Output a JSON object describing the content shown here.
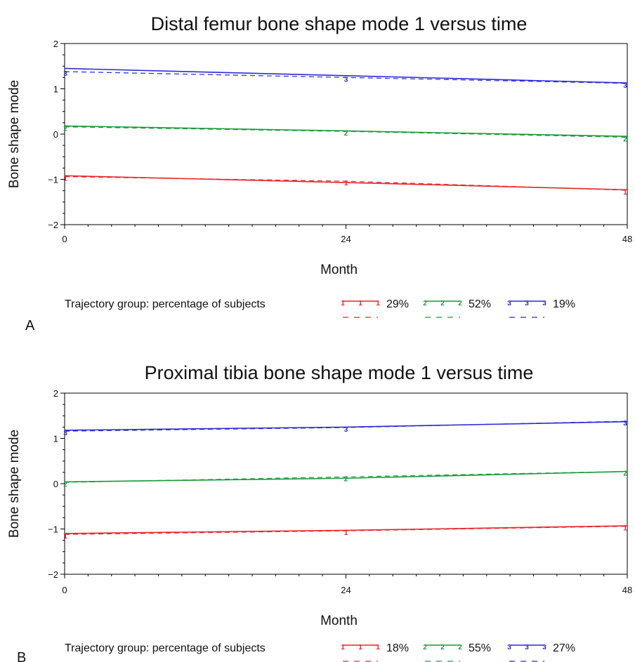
{
  "chart_data": [
    {
      "type": "line",
      "panel_label": "A",
      "title": "Distal femur bone shape mode 1 versus time",
      "xlabel": "Month",
      "ylabel": "Bone shape mode",
      "xlim": [
        0,
        48
      ],
      "ylim": [
        -2,
        2
      ],
      "xticks": [
        "0",
        "24",
        "48"
      ],
      "yticks": [
        {
          "value": 2,
          "label": "2"
        },
        {
          "value": 1,
          "label": "1"
        },
        {
          "value": 0,
          "label": "0"
        },
        {
          "value": -1,
          "label": "−1"
        },
        {
          "value": -2,
          "label": "−2"
        }
      ],
      "x": [
        0,
        24,
        48
      ],
      "legend_title": "Trajectory group: percentage of subjects",
      "series": [
        {
          "marker": "1",
          "label": "29%",
          "color": "#e8262a",
          "predicted": [
            -0.92,
            -1.07,
            -1.23
          ],
          "observed": [
            -0.94,
            -1.04,
            -1.24
          ]
        },
        {
          "marker": "2",
          "label": "52%",
          "color": "#1a9a3a",
          "predicted": [
            0.18,
            0.07,
            -0.05
          ],
          "observed": [
            0.16,
            0.06,
            -0.07
          ]
        },
        {
          "marker": "3",
          "label": "19%",
          "color": "#2b2bd9",
          "predicted": [
            1.45,
            1.29,
            1.13
          ],
          "observed": [
            1.38,
            1.25,
            1.12
          ]
        }
      ]
    },
    {
      "type": "line",
      "panel_label": "B",
      "title": "Proximal tibia bone shape mode 1 versus time",
      "xlabel": "Month",
      "ylabel": "Bone shape mode",
      "xlim": [
        0,
        48
      ],
      "ylim": [
        -2,
        2
      ],
      "xticks": [
        "0",
        "24",
        "48"
      ],
      "yticks": [
        {
          "value": 2,
          "label": "2"
        },
        {
          "value": 1,
          "label": "1"
        },
        {
          "value": 0,
          "label": "0"
        },
        {
          "value": -1,
          "label": "−1"
        },
        {
          "value": -2,
          "label": "−2"
        }
      ],
      "x": [
        0,
        24,
        48
      ],
      "legend_title": "Trajectory group: percentage of subjects",
      "series": [
        {
          "marker": "1",
          "label": "18%",
          "color": "#e8262a",
          "predicted": [
            -1.1,
            -1.03,
            -0.93
          ],
          "observed": [
            -1.12,
            -1.04,
            -0.94
          ]
        },
        {
          "marker": "2",
          "label": "55%",
          "color": "#1a9a3a",
          "predicted": [
            0.04,
            0.12,
            0.27
          ],
          "observed": [
            0.03,
            0.15,
            0.27
          ]
        },
        {
          "marker": "3",
          "label": "27%",
          "color": "#2b2bd9",
          "predicted": [
            1.18,
            1.25,
            1.37
          ],
          "observed": [
            1.16,
            1.24,
            1.38
          ]
        }
      ]
    }
  ]
}
